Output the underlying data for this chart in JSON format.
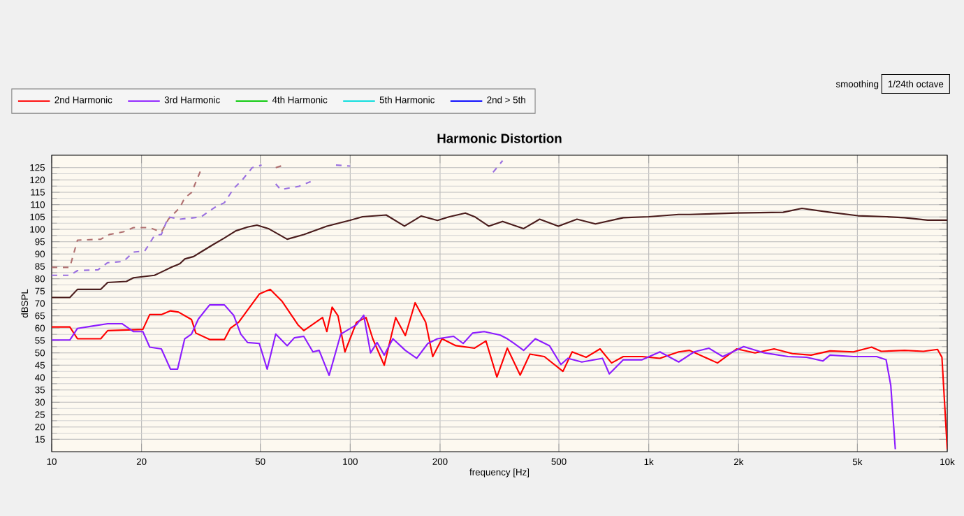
{
  "chart_data": {
    "type": "line",
    "title": "Harmonic Distortion",
    "xlabel": "frequency [Hz]",
    "ylabel": "dBSPL",
    "annotations": [
      "smoothing",
      "1/24th octave"
    ],
    "log": "x",
    "grid": true,
    "legend": "top left",
    "marker": "none",
    "xlim": [
      10,
      10000
    ],
    "ylim": [
      10,
      130
    ],
    "xticks": [
      10,
      20,
      50,
      100,
      200,
      500,
      {
        "value": 1000,
        "label": "1k"
      },
      {
        "value": 2000,
        "label": "2k"
      },
      {
        "value": 5000,
        "label": "5k"
      },
      {
        "value": 10000,
        "label": "10k"
      }
    ],
    "yticks": [
      15,
      20,
      25,
      30,
      35,
      40,
      45,
      50,
      55,
      60,
      65,
      70,
      75,
      80,
      85,
      90,
      95,
      100,
      105,
      110,
      115,
      120,
      125
    ],
    "series": [
      {
        "name": "2nd Harmonic",
        "color": "#ff0000",
        "x": [
          10,
          11.5,
          12.2,
          14.6,
          15.4,
          20.2,
          21.3,
          23.3,
          25.0,
          26.6,
          29.4,
          30.4,
          33.8,
          37.9,
          39.7,
          42.3,
          49.6,
          53.9,
          59,
          66.8,
          69.9,
          80.8,
          83.5,
          87,
          91,
          96,
          105,
          113,
          119,
          130,
          142,
          153,
          165,
          179,
          189,
          203,
          226,
          261,
          285,
          310,
          336,
          371,
          400,
          447,
          516,
          554,
          617,
          687,
          751,
          822,
          950,
          1090,
          1260,
          1370,
          1700,
          1970,
          2270,
          2630,
          3030,
          3500,
          4050,
          4850,
          5580,
          6010,
          7200,
          8320,
          9280,
          9600,
          10000
        ],
        "values": [
          60.5,
          60.5,
          55.7,
          55.7,
          59,
          59.5,
          65.5,
          65.5,
          67,
          66.5,
          63.5,
          58,
          55.4,
          55.4,
          60,
          62.4,
          73.8,
          75.7,
          71,
          61.4,
          59,
          64.3,
          58.6,
          68.5,
          65,
          50.4,
          62.4,
          64.3,
          55.7,
          45,
          64.3,
          57,
          70.3,
          62.4,
          48.5,
          55.7,
          52.9,
          51.9,
          54.8,
          40.2,
          51.9,
          41,
          49.5,
          48.5,
          42.5,
          50.4,
          48.2,
          51.6,
          45.9,
          48.5,
          48.5,
          47.8,
          50.4,
          51,
          45.9,
          51.6,
          50,
          51.6,
          49.7,
          49.1,
          50.8,
          50.4,
          52.3,
          50.6,
          51,
          50.6,
          51.4,
          48.2,
          11
        ]
      },
      {
        "name": "3rd Harmonic",
        "color": "#8c1cff",
        "x": [
          10,
          11.5,
          12.2,
          13.8,
          15.4,
          17.2,
          18.8,
          20.2,
          21.3,
          23.3,
          25.0,
          26.4,
          27.9,
          29.4,
          31.0,
          33.8,
          37.9,
          40.7,
          43.0,
          45.3,
          49.6,
          52.7,
          56.3,
          61.5,
          65.0,
          69.9,
          75.0,
          78.7,
          85,
          93,
          105,
          111,
          117,
          123,
          130,
          139,
          153,
          167,
          182,
          196,
          222,
          239,
          257,
          281,
          318,
          336,
          354,
          381,
          417,
          465,
          508,
          536,
          597,
          700,
          738,
          822,
          950,
          1090,
          1260,
          1420,
          1590,
          1770,
          2080,
          2440,
          2930,
          3380,
          3830,
          4050,
          4850,
          5800,
          6240,
          6470,
          6700
        ],
        "values": [
          55.2,
          55.2,
          59.9,
          60.9,
          61.8,
          61.8,
          58.6,
          58.6,
          52.3,
          51.6,
          43.4,
          43.4,
          55.7,
          57.6,
          63.7,
          69.4,
          69.4,
          65.2,
          57.6,
          54.2,
          53.8,
          43.4,
          57.6,
          52.9,
          56.1,
          56.7,
          50.4,
          51,
          40.9,
          57.6,
          61.4,
          65.2,
          50,
          54.2,
          49.1,
          55.7,
          51,
          47.8,
          53.8,
          55.7,
          56.7,
          53.8,
          58,
          58.6,
          57.2,
          55.7,
          53.8,
          51,
          55.7,
          52.9,
          45.3,
          47.8,
          46.3,
          47.8,
          41.5,
          47.2,
          47.2,
          50.4,
          46.3,
          50.4,
          51.9,
          48.5,
          52.5,
          50,
          48.5,
          48.2,
          46.7,
          49.1,
          48.5,
          48.5,
          47.2,
          36.8,
          11
        ]
      },
      {
        "name": "4th Harmonic",
        "color": "#00c800"
      },
      {
        "name": "5th Harmonic",
        "color": "#00dcdc"
      },
      {
        "name": "2nd > 5th",
        "color": "#0000ff"
      },
      {
        "color": "#4a1c1c",
        "x": [
          10,
          11.5,
          12.2,
          14.6,
          15.4,
          17.8,
          18.8,
          22.1,
          23.3,
          25.3,
          26.9,
          27.9,
          29.9,
          31.6,
          34.6,
          37.9,
          41.4,
          45.3,
          48.7,
          53.2,
          61.5,
          69.9,
          83.5,
          100,
          110,
          132,
          152,
          173,
          196,
          215,
          243,
          261,
          291,
          324,
          381,
          431,
          498,
          575,
          663,
          822,
          1000,
          1260,
          1370,
          1970,
          2820,
          3260,
          4050,
          5020,
          6240,
          7200,
          8600,
          10000
        ],
        "values": [
          72.4,
          72.4,
          75.7,
          75.7,
          78.5,
          78.9,
          80.4,
          81.4,
          82.7,
          84.8,
          86.1,
          88,
          89,
          90.8,
          93.7,
          96.5,
          99.4,
          100.9,
          101.7,
          100.3,
          96,
          97.9,
          101.3,
          103.7,
          105.1,
          105.8,
          101.3,
          105.4,
          103.6,
          105.1,
          106.6,
          105.1,
          101.3,
          103.2,
          100.3,
          104.1,
          101.3,
          104.1,
          102.2,
          104.7,
          105.1,
          106,
          106,
          106.6,
          106.9,
          108.5,
          106.9,
          105.5,
          105.1,
          104.7,
          103.7,
          103.7
        ]
      },
      {
        "color": "#b07070",
        "line_style": "dashed",
        "x": [
          10,
          11.5,
          12.2,
          14.6,
          15.6,
          17.4,
          18.8,
          21.3,
          23.3,
          24.6,
          26.9,
          27.9,
          29.4,
          31.6,
          33.3,
          56.3,
          60
        ],
        "values": [
          84.6,
          84.6,
          95.6,
          96,
          97.9,
          99,
          100.7,
          100.7,
          98.8,
          104.1,
          108.9,
          112.7,
          114.9,
          124,
          null,
          125,
          126
        ]
      },
      {
        "color": "#9a70e0",
        "line_style": "dashed",
        "x": [
          10,
          11.5,
          12.2,
          14.3,
          15.4,
          17.4,
          18.8,
          20.5,
          22.1,
          23.3,
          24.6,
          26.9,
          31.6,
          35.2,
          37.9,
          40.7,
          43.7,
          47,
          50.5,
          53.2,
          56.3,
          58.4,
          67.3,
          73.7,
          80.8,
          89.6,
          100,
          110,
          301,
          324
        ],
        "values": [
          81.4,
          81.4,
          83.3,
          83.6,
          86.5,
          87,
          90.8,
          91.2,
          97.5,
          97.9,
          105,
          104.1,
          105,
          108.9,
          110.8,
          116.5,
          120.3,
          125,
          126,
          null,
          118.4,
          116.1,
          117.4,
          119.3,
          null,
          126,
          125.6,
          null,
          123.1,
          127.8
        ]
      }
    ]
  }
}
